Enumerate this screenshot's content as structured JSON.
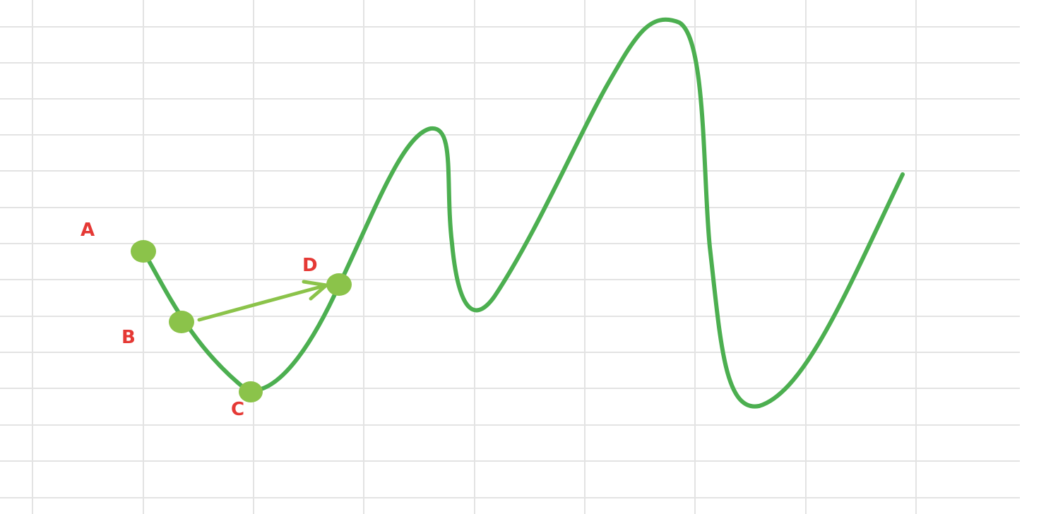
{
  "colors": {
    "curve": "#4caf50",
    "point_fill": "#8bc34a",
    "point_outline": "#3d9a4a",
    "arrow": "#8bc34a",
    "label": "#e53935",
    "grid": "#e3e3e3",
    "background": "#ffffff"
  },
  "points": [
    {
      "id": "A",
      "label": "A"
    },
    {
      "id": "B",
      "label": "B"
    },
    {
      "id": "C",
      "label": "C"
    },
    {
      "id": "D",
      "label": "D"
    }
  ],
  "arrow": {
    "from": "B",
    "to": "D"
  }
}
